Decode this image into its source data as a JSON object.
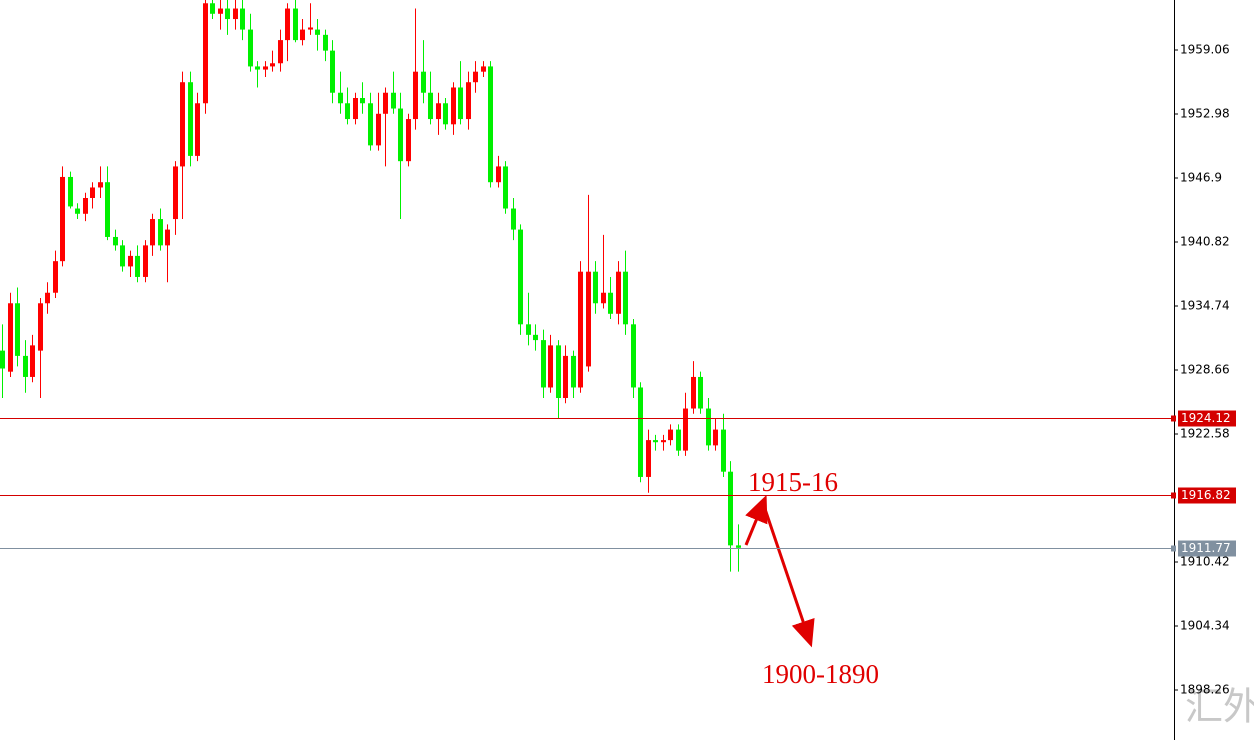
{
  "chart_data": {
    "type": "candlestick",
    "open": [
      1930.5,
      1928.5,
      1935,
      1930,
      1928,
      1930.5,
      1935,
      1936,
      1939,
      1947,
      1944,
      1943.5,
      1945,
      1946,
      1946.5,
      1941.3,
      1940.5,
      1938.5,
      1939.5,
      1937.5,
      1940.5,
      1943,
      1940.5,
      1943,
      1948,
      1956,
      1949,
      1954,
      1963.5,
      1962.5,
      1963,
      1962,
      1963,
      1961,
      1957.5,
      1957.2,
      1957.5,
      1957.8,
      1960,
      1963,
      1960,
      1961,
      1961,
      1960.5,
      1959,
      1955,
      1954,
      1952.5,
      1954.5,
      1954,
      1950,
      1953,
      1955,
      1953.5,
      1948.5,
      1952.5,
      1957,
      1955,
      1952.5,
      1954,
      1952,
      1955.5,
      1952.5,
      1956,
      1957,
      1957.5,
      1946.5,
      1948,
      1944,
      1942,
      1933,
      1932,
      1931.5,
      1927,
      1931,
      1926,
      1930,
      1927,
      1929,
      1938,
      1935,
      1936,
      1934,
      1938,
      1933,
      1927,
      1918.5,
      1922,
      1921.8,
      1922,
      1923,
      1921,
      1925,
      1928,
      1925,
      1921.5,
      1923,
      1919,
      1912
    ],
    "high": [
      1933,
      1936,
      1936.5,
      1931.5,
      1932,
      1935.5,
      1937,
      1940,
      1948,
      1947.5,
      1944.5,
      1945.5,
      1946.5,
      1948,
      1948,
      1942,
      1941,
      1940,
      1940.5,
      1941,
      1943.5,
      1944,
      1942.5,
      1948.5,
      1957,
      1957,
      1955,
      1964,
      1964,
      1964,
      1964,
      1964,
      1964,
      1962.5,
      1958,
      1958,
      1959,
      1961,
      1963.5,
      1964,
      1962,
      1963.5,
      1962,
      1961,
      1960,
      1957,
      1955.5,
      1955,
      1956,
      1955,
      1955,
      1955.5,
      1957,
      1955,
      1953,
      1963,
      1960,
      1957,
      1955,
      1954.5,
      1956,
      1958,
      1957,
      1958,
      1958,
      1958,
      1949,
      1948.5,
      1945,
      1942.5,
      1936,
      1933,
      1932.5,
      1932,
      1931.5,
      1931,
      1930.5,
      1939,
      1945.3,
      1939,
      1941.5,
      1937.5,
      1939,
      1940,
      1933.5,
      1927.5,
      1923,
      1922.5,
      1922.5,
      1923.5,
      1923.5,
      1926.5,
      1929.5,
      1928.5,
      1926,
      1924,
      1924.5,
      1920,
      1914
    ],
    "low": [
      1926,
      1928,
      1929,
      1926.5,
      1927.5,
      1926,
      1934,
      1935.5,
      1938.5,
      1944,
      1943,
      1942.8,
      1944,
      1945,
      1941,
      1940,
      1938,
      1937.5,
      1937,
      1937,
      1939.5,
      1940,
      1937,
      1941.5,
      1943,
      1948,
      1948.5,
      1953,
      1962,
      1961,
      1960.5,
      1961,
      1960,
      1957,
      1955.5,
      1956.5,
      1957,
      1957,
      1958,
      1959.8,
      1959.5,
      1960.5,
      1959,
      1958,
      1954,
      1953,
      1952,
      1952,
      1953,
      1949.5,
      1949.5,
      1948,
      1953,
      1943,
      1948,
      1951.5,
      1954,
      1952,
      1951,
      1951.5,
      1951,
      1952,
      1951.5,
      1955,
      1956.5,
      1946,
      1946,
      1943.5,
      1941,
      1932,
      1931,
      1930.5,
      1926,
      1926.5,
      1924,
      1925.5,
      1926,
      1926.5,
      1928.5,
      1934,
      1934.5,
      1933.5,
      1933,
      1932,
      1926,
      1918,
      1917,
      1921,
      1921,
      1921.5,
      1920.5,
      1920.5,
      1924.5,
      1924.5,
      1921,
      1921,
      1918.5,
      1909.5,
      1909.5
    ],
    "close": [
      1928.8,
      1935,
      1930,
      1928,
      1931,
      1935,
      1936,
      1939,
      1947,
      1944.2,
      1943.5,
      1945,
      1946,
      1946.5,
      1941.3,
      1940.5,
      1938.5,
      1939.5,
      1937.5,
      1940.5,
      1943,
      1940.5,
      1942,
      1948,
      1956,
      1949,
      1954,
      1963.5,
      1962.5,
      1963,
      1962,
      1963,
      1961,
      1957.5,
      1957.2,
      1957.5,
      1957.8,
      1960,
      1963,
      1960,
      1961,
      1961.2,
      1960.5,
      1959,
      1955,
      1954,
      1952.5,
      1954.5,
      1954,
      1950,
      1953,
      1955,
      1953.5,
      1948.5,
      1952.5,
      1957,
      1955,
      1952.5,
      1954,
      1952,
      1955.5,
      1952.5,
      1956,
      1957,
      1957.5,
      1946.5,
      1948,
      1944,
      1942,
      1933,
      1932,
      1931.5,
      1927,
      1931,
      1926,
      1930,
      1927,
      1938,
      1938,
      1935,
      1936,
      1934,
      1938,
      1933,
      1927,
      1918.5,
      1922,
      1921.8,
      1922,
      1923,
      1921,
      1925,
      1928,
      1925,
      1921.5,
      1923,
      1919,
      1912,
      1911.77
    ],
    "up_color": "#ff0000",
    "down_color": "#00f000",
    "ylim": [
      1893.51,
      1963.81
    ],
    "yticks": [
      1959.06,
      1952.98,
      1946.9,
      1940.82,
      1934.74,
      1928.66,
      1922.58,
      1910.42,
      1904.34,
      1898.26
    ],
    "price_lines": [
      {
        "value": 1924.12,
        "color": "#d40000"
      },
      {
        "value": 1916.82,
        "color": "#d40000"
      },
      {
        "value": 1911.77,
        "color": "#8090a0"
      }
    ],
    "annotations": [
      "1915-16",
      "1900-1890"
    ],
    "watermark": "汇外网"
  }
}
